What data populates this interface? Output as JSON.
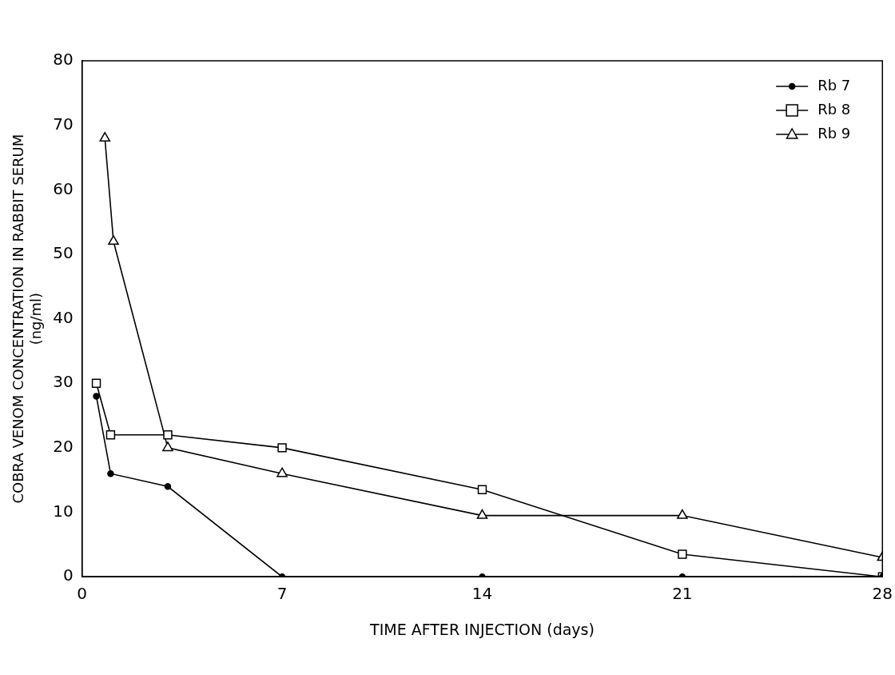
{
  "chart_data": {
    "type": "line",
    "xlabel": "TIME AFTER INJECTION (days)",
    "ylabel": [
      "COBRA VENOM CONCENTRATION IN RABBIT SERUM",
      "(ng/ml)"
    ],
    "series": [
      {
        "name": "Rb 7",
        "color": "#000000",
        "marker": "circle",
        "line_style": "solid",
        "x": [
          0.5,
          1,
          3,
          7,
          14,
          21,
          28
        ],
        "values": [
          28,
          16,
          14,
          0,
          0,
          0,
          0
        ]
      },
      {
        "name": "Rb 8",
        "color": "#000000",
        "marker": "square",
        "line_style": "solid",
        "x": [
          0.5,
          1,
          3,
          7,
          14,
          21,
          28
        ],
        "values": [
          30,
          22,
          22,
          20,
          13.5,
          3.5,
          0
        ]
      },
      {
        "name": "Rb 9",
        "color": "#000000",
        "marker": "triangle",
        "line_style": "solid",
        "x": [
          0.8,
          1.1,
          3,
          7,
          14,
          21,
          28
        ],
        "values": [
          68,
          52,
          20,
          16,
          9.5,
          9.5,
          3
        ]
      }
    ],
    "xlim": [
      0,
      28
    ],
    "xticks": [
      0,
      7,
      14,
      21,
      28
    ],
    "ylim": [
      0,
      80
    ],
    "yticks": [
      0,
      10,
      20,
      30,
      40,
      50,
      60,
      70,
      80
    ],
    "grid": false,
    "legend": "upper right"
  }
}
